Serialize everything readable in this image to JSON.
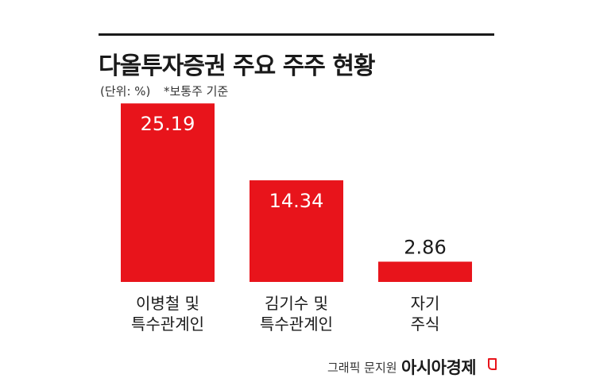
{
  "header": {
    "title": "다올투자증권 주요 주주 현황",
    "unit_note": "(단위: %)",
    "basis_note": "*보통주 기준"
  },
  "chart_data": {
    "type": "bar",
    "categories": [
      [
        "이병철 및",
        "특수관계인"
      ],
      [
        "김기수 및",
        "특수관계인"
      ],
      [
        "자기",
        "주식"
      ]
    ],
    "values": [
      25.19,
      14.34,
      2.86
    ],
    "value_labels": [
      "25.19",
      "14.34",
      "2.86"
    ],
    "bar_color": "#e8141b",
    "ylim": [
      0,
      26
    ],
    "grid": false,
    "legend": "none"
  },
  "footer": {
    "credit": "그래픽 문지원",
    "brand": "아시아경제"
  },
  "colors": {
    "accent": "#e8141b",
    "text": "#1a1a1a"
  }
}
